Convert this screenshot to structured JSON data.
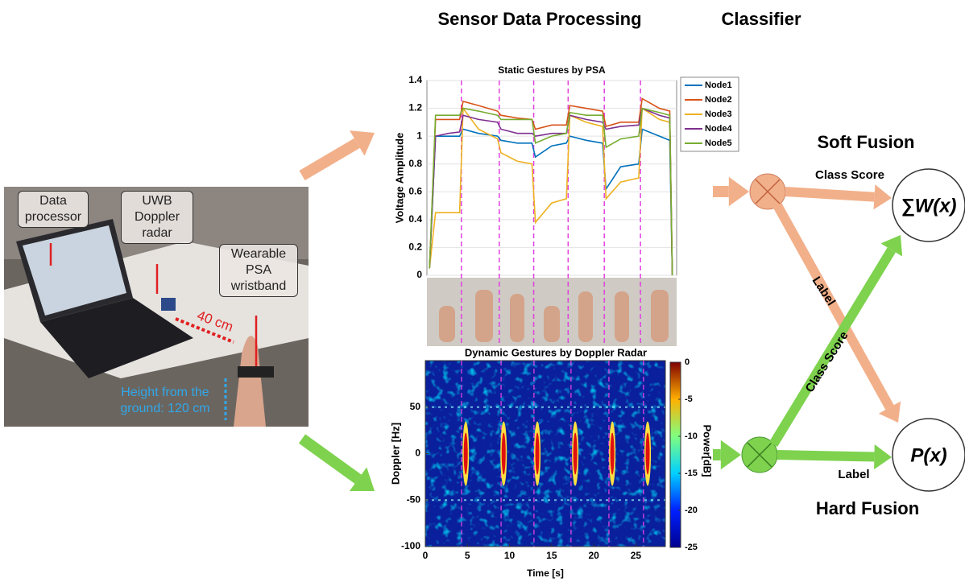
{
  "headings": {
    "processing": "Sensor Data Processing",
    "classifier": "Classifier"
  },
  "photo": {
    "labels": [
      "Data processor",
      "UWB Doppler radar",
      "Wearable PSA wristband"
    ],
    "distance": "40 cm",
    "height": "Height from the ground: 120 cm"
  },
  "chart_data": [
    {
      "type": "line",
      "title": "Static Gestures by PSA",
      "y_label": "Voltage Amplitude",
      "x": [
        0.3,
        1,
        2.5,
        3.8,
        4.2,
        6,
        8.2,
        8.6,
        10.5,
        12.2,
        12.6,
        14.5,
        16.2,
        16.6,
        18.5,
        20.4,
        20.8,
        22.5,
        24.6,
        25,
        27,
        28.2,
        28.5
      ],
      "xlim": [
        0,
        29
      ],
      "ylim": [
        0,
        1.4
      ],
      "yticks": [
        0,
        0.2,
        0.4,
        0.6,
        0.8,
        1,
        1.2,
        1.4
      ],
      "grid": true,
      "vlines": [
        4,
        8.4,
        12.4,
        16.4,
        20.6,
        24.8
      ],
      "vline_color": "#e040e0",
      "legend": "right",
      "series": [
        {
          "name": "Node1",
          "color": "#0072bd",
          "values": [
            0.05,
            1.0,
            1.0,
            1.0,
            1.05,
            1.02,
            1.0,
            0.97,
            0.95,
            0.95,
            0.85,
            0.93,
            0.95,
            1.0,
            0.97,
            0.95,
            0.62,
            0.78,
            0.8,
            1.05,
            1.0,
            0.97,
            0.0
          ]
        },
        {
          "name": "Node2",
          "color": "#d95319",
          "values": [
            0.05,
            1.12,
            1.12,
            1.12,
            1.25,
            1.22,
            1.18,
            1.15,
            1.13,
            1.12,
            1.05,
            1.08,
            1.08,
            1.22,
            1.2,
            1.18,
            1.07,
            1.1,
            1.1,
            1.27,
            1.2,
            1.18,
            0.0
          ]
        },
        {
          "name": "Node3",
          "color": "#edb120",
          "values": [
            0.05,
            0.45,
            0.45,
            0.45,
            1.2,
            1.05,
            0.98,
            0.88,
            0.82,
            0.8,
            0.38,
            0.52,
            0.55,
            1.15,
            1.1,
            1.07,
            0.55,
            0.67,
            0.7,
            1.2,
            1.12,
            1.1,
            0.0
          ]
        },
        {
          "name": "Node4",
          "color": "#7e2f8e",
          "values": [
            0.05,
            1.0,
            1.02,
            1.03,
            1.15,
            1.12,
            1.1,
            1.05,
            1.02,
            1.02,
            1.0,
            1.02,
            1.02,
            1.15,
            1.12,
            1.1,
            1.05,
            1.07,
            1.08,
            1.2,
            1.15,
            1.13,
            0.0
          ]
        },
        {
          "name": "Node5",
          "color": "#77ac30",
          "values": [
            0.05,
            1.15,
            1.15,
            1.15,
            1.2,
            1.18,
            1.15,
            1.12,
            1.12,
            1.12,
            0.95,
            1.0,
            1.02,
            1.17,
            1.15,
            1.15,
            0.92,
            0.98,
            1.0,
            1.2,
            1.17,
            1.15,
            0.0
          ]
        }
      ]
    },
    {
      "type": "heatmap",
      "title": "Dynamic Gestures by Doppler Radar",
      "x_label": "Time [s]",
      "y_label": "Doppler [Hz]",
      "colorbar_label": "Power[dB]",
      "xlim": [
        0,
        28.5
      ],
      "ylim": [
        -100,
        100
      ],
      "xticks": [
        0,
        5,
        10,
        15,
        20,
        25
      ],
      "yticks": [
        -100,
        -50,
        0,
        50
      ],
      "clim": [
        -25,
        0
      ],
      "cticks": [
        0,
        -5,
        -10,
        -15,
        -20,
        -25
      ],
      "vlines": [
        4.3,
        9,
        12.9,
        17.3,
        21.8,
        25.9
      ],
      "vline_color": "#e040e0",
      "bursts": [
        4.8,
        9.3,
        13.3,
        17.8,
        22.2,
        26.4
      ]
    }
  ],
  "fusion": {
    "soft": "Soft Fusion",
    "hard": "Hard Fusion",
    "soft_node": "∑W(x)",
    "hard_node": "P(x)",
    "edges": [
      "Class Score",
      "Label",
      "Class Score",
      "Label"
    ]
  }
}
